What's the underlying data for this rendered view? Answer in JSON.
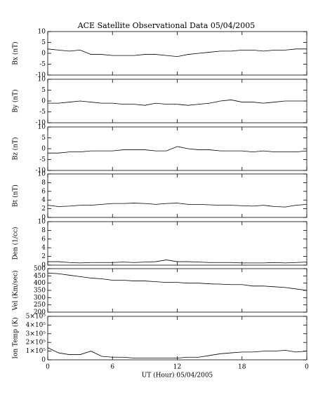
{
  "chart_data": [
    {
      "type": "line",
      "title": "ACE Satellite Observational Data   05/04/2005",
      "ylabel": "Bx (nT)",
      "ylim": [
        -10,
        10
      ],
      "yticks": [
        -10,
        -5,
        0,
        5,
        10
      ],
      "xlim": [
        0,
        24
      ],
      "x": [
        0,
        1,
        2,
        3,
        4,
        5,
        6,
        7,
        8,
        9,
        10,
        11,
        12,
        13,
        14,
        15,
        16,
        17,
        18,
        19,
        20,
        21,
        22,
        23,
        24
      ],
      "values": [
        2,
        1.5,
        1,
        1.5,
        -0.5,
        -0.5,
        -1,
        -1,
        -1,
        -0.5,
        -0.5,
        -1,
        -1.5,
        -0.5,
        0,
        0.5,
        1,
        1,
        1.5,
        1.5,
        1,
        1.5,
        1.5,
        2,
        2
      ],
      "color": "#000000"
    },
    {
      "type": "line",
      "ylabel": "By (nT)",
      "ylim": [
        -10,
        10
      ],
      "yticks": [
        -10,
        -5,
        0,
        5,
        10
      ],
      "xlim": [
        0,
        24
      ],
      "x": [
        0,
        1,
        2,
        3,
        4,
        5,
        6,
        7,
        8,
        9,
        10,
        11,
        12,
        13,
        14,
        15,
        16,
        17,
        18,
        19,
        20,
        21,
        22,
        23,
        24
      ],
      "values": [
        -1,
        -1,
        -0.5,
        0,
        -0.5,
        -1,
        -1,
        -1.5,
        -1.5,
        -2,
        -1,
        -1.5,
        -1.5,
        -2,
        -1.5,
        -1,
        0,
        0.5,
        -0.5,
        -0.5,
        -1,
        -0.5,
        0,
        0,
        0
      ],
      "color": "#000000"
    },
    {
      "type": "line",
      "ylabel": "Bz (nT)",
      "ylim": [
        -10,
        10
      ],
      "yticks": [
        -10,
        -5,
        0,
        5,
        10
      ],
      "xlim": [
        0,
        24
      ],
      "x": [
        0,
        1,
        2,
        3,
        4,
        5,
        6,
        7,
        8,
        9,
        10,
        11,
        12,
        13,
        14,
        15,
        16,
        17,
        18,
        19,
        20,
        21,
        22,
        23,
        24
      ],
      "values": [
        -2,
        -2,
        -1.5,
        -1.5,
        -1,
        -1,
        -1,
        -0.5,
        -0.5,
        -0.5,
        -1,
        -1,
        1,
        0,
        -0.5,
        -0.5,
        -1,
        -1,
        -1,
        -1.5,
        -1,
        -1.5,
        -1.5,
        -1.5,
        -1
      ],
      "color": "#000000"
    },
    {
      "type": "line",
      "ylabel": "Bt (nT)",
      "ylim": [
        0,
        10
      ],
      "yticks": [
        0,
        2,
        4,
        6,
        8,
        10
      ],
      "xlim": [
        0,
        24
      ],
      "x": [
        0,
        1,
        2,
        3,
        4,
        5,
        6,
        7,
        8,
        9,
        10,
        11,
        12,
        13,
        14,
        15,
        16,
        17,
        18,
        19,
        20,
        21,
        22,
        23,
        24
      ],
      "values": [
        2.8,
        2.5,
        2.6,
        2.8,
        2.8,
        3,
        3.2,
        3.2,
        3.3,
        3.2,
        3,
        3.2,
        3.3,
        3,
        3,
        2.9,
        2.8,
        2.8,
        2.7,
        2.6,
        2.8,
        2.5,
        2.4,
        2.8,
        3
      ],
      "color": "#000000"
    },
    {
      "type": "line",
      "ylabel": "Den (1/cc)",
      "ylim": [
        0,
        10
      ],
      "yticks": [
        0,
        2,
        4,
        6,
        8,
        10
      ],
      "xlim": [
        0,
        24
      ],
      "x": [
        0,
        1,
        2,
        3,
        4,
        5,
        6,
        7,
        8,
        9,
        10,
        11,
        12,
        13,
        14,
        15,
        16,
        17,
        18,
        19,
        20,
        21,
        22,
        23,
        24
      ],
      "values": [
        0.8,
        0.8,
        0.6,
        0.5,
        0.6,
        0.6,
        0.6,
        0.7,
        0.6,
        0.7,
        0.8,
        1.2,
        0.8,
        0.8,
        0.7,
        0.6,
        0.6,
        0.6,
        0.5,
        0.5,
        0.5,
        0.6,
        0.5,
        0.6,
        0.7
      ],
      "color": "#000000"
    },
    {
      "type": "line",
      "ylabel": "Vel (Km/sec)",
      "ylim": [
        200,
        500
      ],
      "yticks": [
        200,
        250,
        300,
        350,
        400,
        450,
        500
      ],
      "xlim": [
        0,
        24
      ],
      "x": [
        0,
        1,
        2,
        3,
        4,
        5,
        6,
        7,
        8,
        9,
        10,
        11,
        12,
        13,
        14,
        15,
        16,
        17,
        18,
        19,
        20,
        21,
        22,
        23,
        24
      ],
      "values": [
        470,
        465,
        455,
        445,
        435,
        430,
        420,
        420,
        415,
        415,
        410,
        405,
        405,
        400,
        400,
        395,
        393,
        390,
        390,
        380,
        380,
        375,
        370,
        360,
        350
      ],
      "color": "#000000"
    },
    {
      "type": "line",
      "ylabel": "Ion Temp (K)",
      "ylim": [
        0,
        500000
      ],
      "yticks": [
        0,
        {
          "value": 100000,
          "label": "1×10⁵"
        },
        {
          "value": 200000,
          "label": "2×10⁵"
        },
        {
          "value": 300000,
          "label": "3×10⁵"
        },
        {
          "value": 400000,
          "label": "4×10⁵"
        },
        {
          "value": 500000,
          "label": "5×10⁵"
        }
      ],
      "xlim": [
        0,
        24
      ],
      "xticks": [
        0,
        6,
        12,
        18,
        {
          "value": 24,
          "label": "0"
        }
      ],
      "xlabel": "UT (Hour)   05/04/2005",
      "x": [
        0,
        1,
        2,
        3,
        4,
        5,
        6,
        7,
        8,
        9,
        10,
        11,
        12,
        13,
        14,
        15,
        16,
        17,
        18,
        19,
        20,
        21,
        22,
        23,
        24
      ],
      "values": [
        140000,
        80000,
        60000,
        60000,
        100000,
        40000,
        30000,
        30000,
        20000,
        20000,
        20000,
        20000,
        20000,
        30000,
        30000,
        50000,
        70000,
        80000,
        90000,
        90000,
        100000,
        100000,
        110000,
        90000,
        100000
      ],
      "color": "#000000"
    }
  ]
}
